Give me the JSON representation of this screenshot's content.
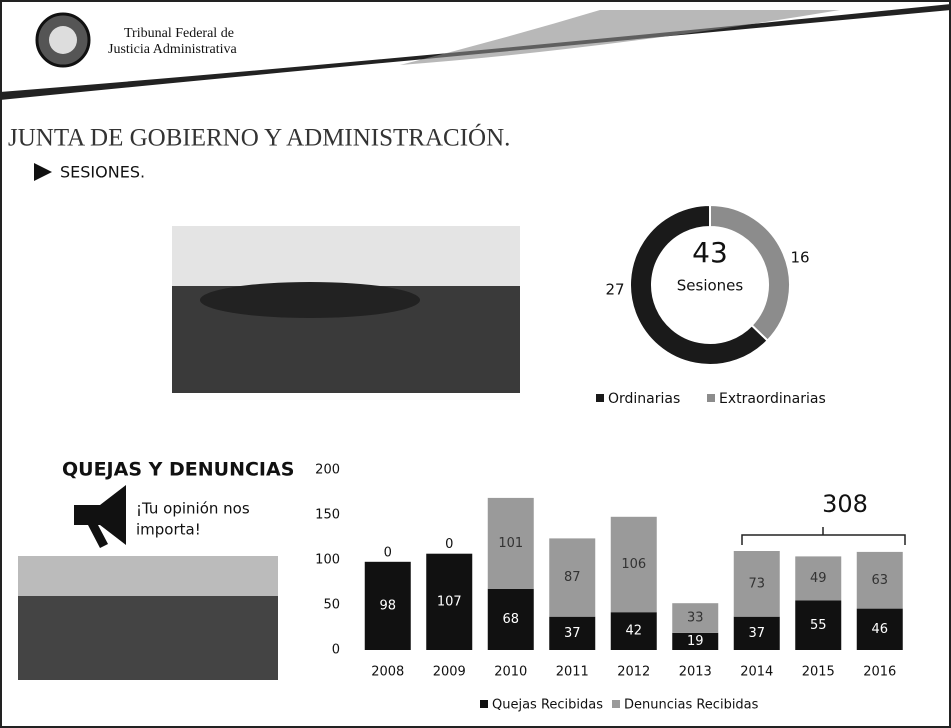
{
  "header": {
    "institution_line1": "Tribunal Federal de",
    "institution_line2": "Justicia Administrativa"
  },
  "title": "JUNTA DE GOBIERNO Y ADMINISTRACIÓN.",
  "section": "SESIONES.",
  "complaints": {
    "title": "QUEJAS Y DENUNCIAS",
    "slogan_line1": "¡Tu opinión nos",
    "slogan_line2": "importa!"
  },
  "chart_data": [
    {
      "type": "donut",
      "center_value": 43,
      "center_label": "Sesiones",
      "categories": [
        "Ordinarias",
        "Extraordinarias"
      ],
      "values": [
        27,
        16
      ],
      "colors": [
        "#1a1a1a",
        "#8c8c8c"
      ]
    },
    {
      "type": "stacked_bar",
      "categories": [
        "2008",
        "2009",
        "2010",
        "2011",
        "2012",
        "2013",
        "2014",
        "2015",
        "2016"
      ],
      "series": [
        {
          "name": "Quejas Recibidas",
          "color": "#111111",
          "values": [
            98,
            107,
            68,
            37,
            42,
            19,
            37,
            55,
            46
          ]
        },
        {
          "name": "Denuncias Recibidas",
          "color": "#9a9a9a",
          "values": [
            0,
            0,
            101,
            87,
            106,
            33,
            73,
            49,
            63
          ]
        }
      ],
      "ylim": [
        0,
        200
      ],
      "yticks": [
        0,
        50,
        100,
        150,
        200
      ],
      "annotation": 308
    }
  ]
}
